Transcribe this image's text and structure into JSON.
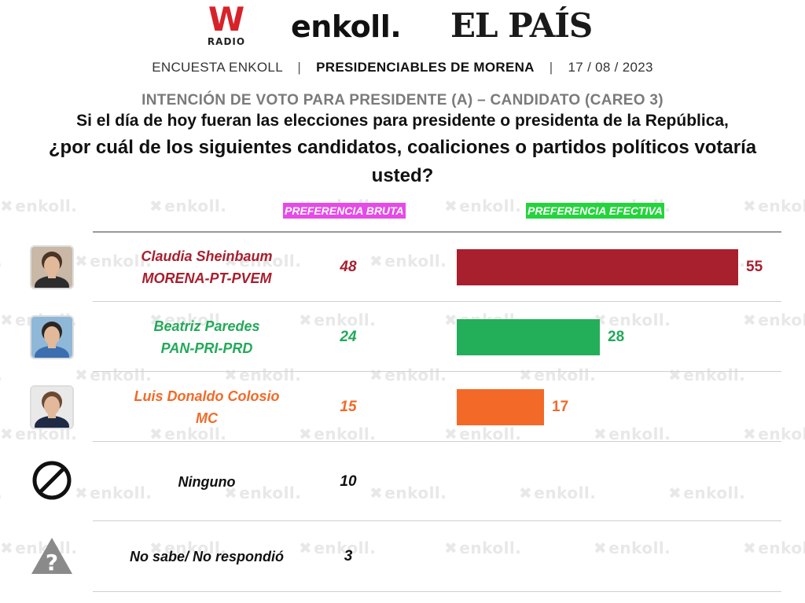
{
  "header": {
    "logo_w_letter": "W",
    "logo_w_sub": "RADIO",
    "logo_enkoll": "enkoll.",
    "logo_pais": "EL PAÍS",
    "survey": "ENCUESTA ENKOLL",
    "topic": "PRESIDENCIABLES DE MORENA",
    "date": "17 / 08 / 2023",
    "separator": "|"
  },
  "watermark": "enkoll.",
  "chart_data": {
    "type": "bar",
    "title": "INTENCIÓN DE VOTO PARA PRESIDENTE (A) – CANDIDATO (CAREO 3)",
    "question_line1": "Si el día de hoy fueran las elecciones para presidente o presidenta de la República,",
    "question_line2": "¿por cuál de los siguientes candidatos, coaliciones o partidos políticos votaría usted?",
    "column_bruta": "PREFERENCIA BRUTA",
    "column_efectiva": "PREFERENCIA EFECTIVA",
    "xlim": [
      0,
      55
    ],
    "rows": [
      {
        "name": "Claudia Sheinbaum",
        "party": "MORENA-PT-PVEM",
        "bruta": 48,
        "efectiva": 55,
        "color": "#a81f2e"
      },
      {
        "name": "Beatriz Paredes",
        "party": "PAN-PRI-PRD",
        "bruta": 24,
        "efectiva": 28,
        "color": "#23ae5a"
      },
      {
        "name": "Luis Donaldo Colosio",
        "party": "MC",
        "bruta": 15,
        "efectiva": 17,
        "color": "#f36a28"
      },
      {
        "name": "Ninguno",
        "party": "",
        "bruta": 10,
        "efectiva": null,
        "color": "#111111"
      },
      {
        "name": "No sabe/ No respondió",
        "party": "",
        "bruta": 3,
        "efectiva": null,
        "color": "#111111"
      }
    ]
  },
  "icons": {
    "row0": "candidate-photo-icon",
    "row1": "candidate-photo-icon",
    "row2": "candidate-photo-icon",
    "row3": "prohibited-icon",
    "row4": "warning-question-icon"
  }
}
